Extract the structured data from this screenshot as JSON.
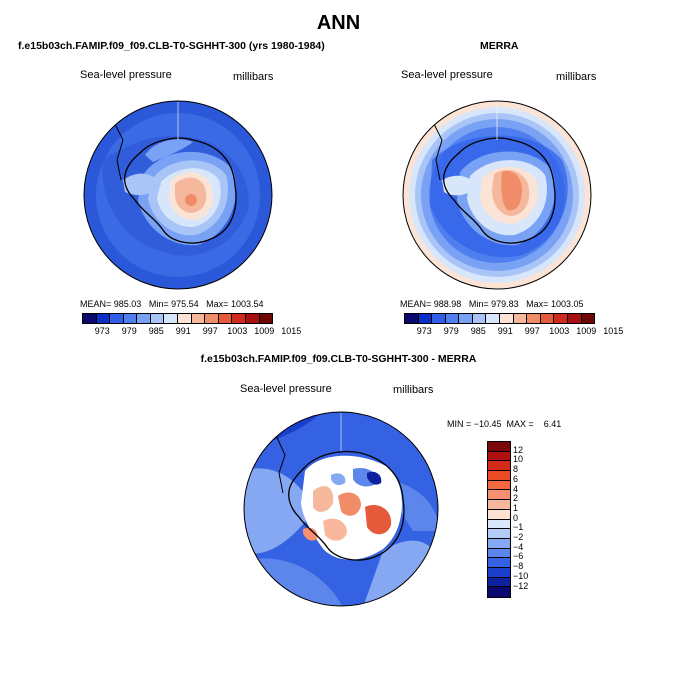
{
  "figure": {
    "title": "ANN"
  },
  "panels": {
    "model": {
      "title": "f.e15b03ch.FAMIP.f09_f09.CLB-T0-SGHHT-300 (yrs 1980-1984)",
      "variable": "Sea-level pressure",
      "units": "millibars",
      "mean_label": "MEAN=",
      "mean": "985.03",
      "min_label": "Min=",
      "min": "975.54",
      "max_label": "Max=",
      "max": "1003.54"
    },
    "obs": {
      "title": "MERRA",
      "variable": "Sea-level pressure",
      "units": "millibars",
      "mean_label": "MEAN=",
      "mean": "988.98",
      "min_label": "Min=",
      "min": "979.83",
      "max_label": "Max=",
      "max": "1003.05"
    },
    "diff": {
      "title": "f.e15b03ch.FAMIP.f09_f09.CLB-T0-SGHHT-300 - MERRA",
      "variable": "Sea-level pressure",
      "units": "millibars",
      "minmax": "MIN = −10.45  MAX =    6.41"
    }
  },
  "colorbar_abs": {
    "labels": [
      "973",
      "979",
      "985",
      "991",
      "997",
      "1003",
      "1009",
      "1015"
    ],
    "colors": [
      "#0a0a6e",
      "#0a2fc8",
      "#2f5fe8",
      "#4f7fee",
      "#7aa2f4",
      "#a9c4f7",
      "#d8e6fb",
      "#fbe3d6",
      "#f6b89c",
      "#f08c68",
      "#e65a3c",
      "#d02a1e",
      "#a80f0f",
      "#6e0606"
    ]
  },
  "colorbar_diff": {
    "labels": [
      "12",
      "10",
      "8",
      "6",
      "4",
      "2",
      "1",
      "0",
      "−1",
      "−2",
      "−4",
      "−6",
      "−8",
      "−10",
      "−12"
    ],
    "colors": [
      "#7a0808",
      "#b01010",
      "#d42a1a",
      "#ea4a24",
      "#f26a3e",
      "#f69070",
      "#f9b89e",
      "#fde2d4",
      "#dbe7fb",
      "#b3cbf7",
      "#86a8f2",
      "#5c86ec",
      "#3462e2",
      "#1a3fcc",
      "#0e22a0",
      "#0a0a6e"
    ]
  }
}
